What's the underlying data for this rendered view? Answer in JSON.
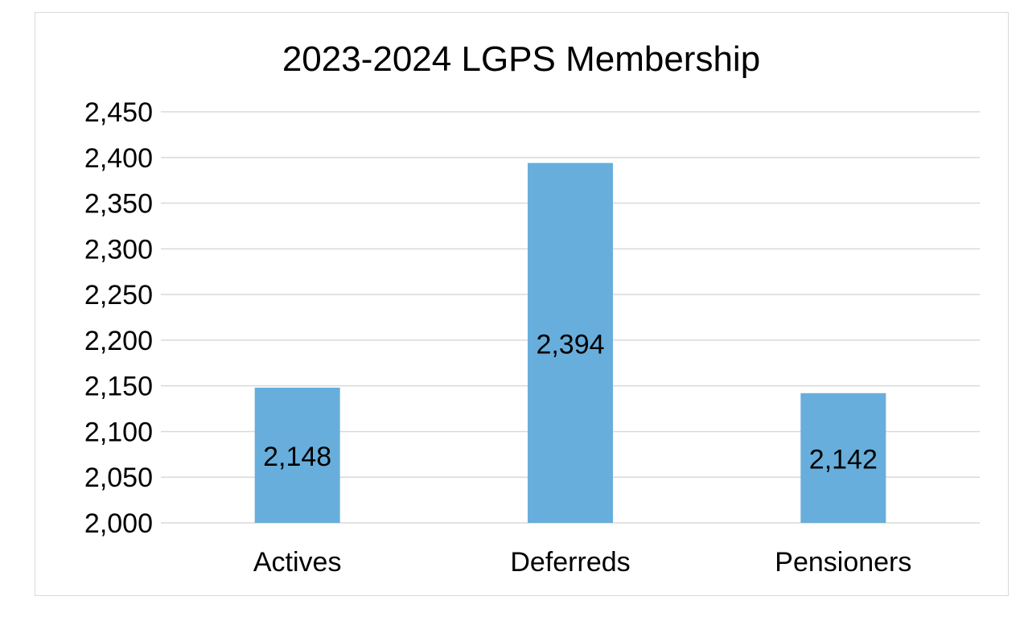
{
  "chart_data": {
    "type": "bar",
    "title": "2023-2024 LGPS Membership",
    "categories": [
      "Actives",
      "Deferreds",
      "Pensioners"
    ],
    "values": [
      2148,
      2394,
      2142
    ],
    "data_labels": [
      "2,148",
      "2,394",
      "2,142"
    ],
    "xlabel": "",
    "ylabel": "",
    "ylim": [
      2000,
      2450
    ],
    "yticks": [
      2000,
      2050,
      2100,
      2150,
      2200,
      2250,
      2300,
      2350,
      2400,
      2450
    ],
    "ytick_labels": [
      "2,000",
      "2,050",
      "2,100",
      "2,150",
      "2,200",
      "2,250",
      "2,300",
      "2,350",
      "2,400",
      "2,450"
    ],
    "grid": true,
    "legend": "none",
    "bar_color": "#67AEDC"
  }
}
